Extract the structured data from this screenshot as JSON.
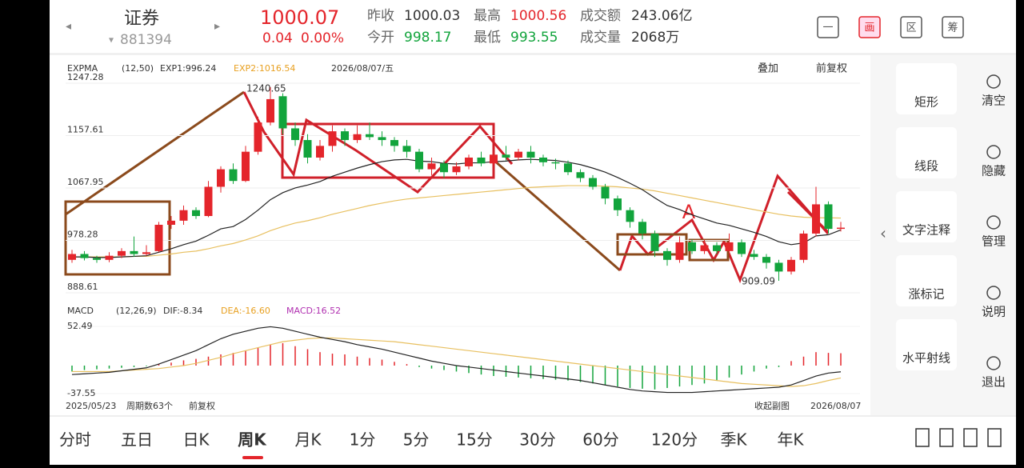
{
  "header": {
    "name": "证券",
    "code": "881394",
    "price": 1000.07,
    "change": 0.04,
    "change_pct": "0.00%",
    "stats": [
      [
        "昨收",
        "1000.03"
      ],
      [
        "最高",
        "1000.56"
      ],
      [
        "成交额",
        "243.06亿"
      ],
      [
        "今开",
        "998.17"
      ],
      [
        "最低",
        "993.55"
      ],
      [
        "成交量",
        "2068万"
      ]
    ],
    "icons": [
      "一",
      "画",
      "区",
      "筹"
    ]
  },
  "chart": {
    "type": "candlestick",
    "indicator": "EXPMA",
    "params": "(12,50)",
    "exp1_label": "EXP1:996.24",
    "exp2_label": "EXP2:1016.54",
    "date": "2026/08/07/五",
    "overlay": "叠加",
    "adjust": "前复权",
    "ylim": [
      888.61,
      1247.28
    ],
    "yticks": [
      888.61,
      978.28,
      1067.95,
      1157.61,
      1247.28
    ],
    "high_note": "1240.65",
    "low_note": "909.09",
    "mark_letter": "A",
    "candles": [
      [
        945,
        955,
        962,
        940
      ],
      [
        955,
        948,
        960,
        944
      ],
      [
        948,
        945,
        952,
        940
      ],
      [
        945,
        952,
        958,
        941
      ],
      [
        952,
        960,
        965,
        948
      ],
      [
        960,
        955,
        985,
        950
      ],
      [
        955,
        958,
        970,
        952
      ],
      [
        960,
        1005,
        1010,
        958
      ],
      [
        1005,
        1012,
        1020,
        998
      ],
      [
        1012,
        1030,
        1038,
        1005
      ],
      [
        1030,
        1020,
        1035,
        1015
      ],
      [
        1020,
        1070,
        1080,
        1018
      ],
      [
        1070,
        1100,
        1105,
        1060
      ],
      [
        1100,
        1080,
        1110,
        1075
      ],
      [
        1080,
        1130,
        1140,
        1078
      ],
      [
        1130,
        1180,
        1190,
        1125
      ],
      [
        1180,
        1220,
        1240.65,
        1175
      ],
      [
        1225,
        1170,
        1230,
        1160
      ],
      [
        1170,
        1150,
        1180,
        1140
      ],
      [
        1150,
        1120,
        1160,
        1110
      ],
      [
        1120,
        1140,
        1150,
        1115
      ],
      [
        1140,
        1165,
        1175,
        1130
      ],
      [
        1165,
        1150,
        1170,
        1140
      ],
      [
        1150,
        1160,
        1175,
        1145
      ],
      [
        1160,
        1155,
        1180,
        1150
      ],
      [
        1155,
        1150,
        1165,
        1140
      ],
      [
        1150,
        1140,
        1155,
        1130
      ],
      [
        1140,
        1130,
        1150,
        1120
      ],
      [
        1130,
        1100,
        1135,
        1095
      ],
      [
        1100,
        1110,
        1120,
        1090
      ],
      [
        1110,
        1095,
        1115,
        1085
      ],
      [
        1095,
        1105,
        1112,
        1090
      ],
      [
        1105,
        1120,
        1125,
        1100
      ],
      [
        1120,
        1110,
        1130,
        1105
      ],
      [
        1110,
        1125,
        1130,
        1108
      ],
      [
        1125,
        1120,
        1140,
        1115
      ],
      [
        1120,
        1130,
        1135,
        1115
      ],
      [
        1130,
        1120,
        1140,
        1110
      ],
      [
        1120,
        1112,
        1125,
        1105
      ],
      [
        1112,
        1110,
        1118,
        1100
      ],
      [
        1110,
        1095,
        1115,
        1090
      ],
      [
        1095,
        1085,
        1100,
        1078
      ],
      [
        1085,
        1070,
        1090,
        1065
      ],
      [
        1070,
        1050,
        1075,
        1040
      ],
      [
        1050,
        1030,
        1055,
        1020
      ],
      [
        1030,
        1010,
        1035,
        1000
      ],
      [
        1010,
        990,
        1015,
        980
      ],
      [
        990,
        960,
        995,
        950
      ],
      [
        960,
        945,
        965,
        935
      ],
      [
        945,
        975,
        985,
        940
      ],
      [
        975,
        960,
        980,
        955
      ],
      [
        960,
        970,
        980,
        955
      ],
      [
        970,
        960,
        975,
        955
      ],
      [
        960,
        975,
        990,
        955
      ],
      [
        975,
        955,
        980,
        950
      ],
      [
        955,
        950,
        962,
        945
      ],
      [
        950,
        940,
        955,
        930
      ],
      [
        940,
        925,
        945,
        909.09
      ],
      [
        925,
        945,
        950,
        920
      ],
      [
        945,
        990,
        995,
        940
      ],
      [
        990,
        1040,
        1070,
        985
      ],
      [
        1040,
        998,
        1045,
        990
      ],
      [
        998,
        1000.07,
        1010,
        993.55
      ]
    ],
    "exp1": [
      950,
      950,
      949,
      949,
      950,
      951,
      952,
      958,
      964,
      971,
      977,
      987,
      998,
      1002,
      1014,
      1030,
      1048,
      1060,
      1068,
      1073,
      1079,
      1088,
      1095,
      1102,
      1108,
      1113,
      1116,
      1117,
      1114,
      1113,
      1110,
      1109,
      1111,
      1111,
      1113,
      1114,
      1116,
      1117,
      1116,
      1115,
      1112,
      1108,
      1102,
      1095,
      1086,
      1076,
      1065,
      1051,
      1038,
      1031,
      1022,
      1015,
      1008,
      1004,
      998,
      992,
      985,
      976,
      971,
      974,
      986,
      988,
      996.24
    ],
    "exp2": [
      950,
      950,
      950,
      950,
      950,
      951,
      951,
      953,
      955,
      958,
      960,
      964,
      969,
      973,
      979,
      986,
      995,
      1002,
      1008,
      1012,
      1017,
      1023,
      1028,
      1033,
      1038,
      1042,
      1046,
      1049,
      1051,
      1053,
      1055,
      1057,
      1059,
      1061,
      1063,
      1065,
      1067,
      1069,
      1070,
      1071,
      1072,
      1072,
      1072,
      1071,
      1070,
      1068,
      1066,
      1063,
      1059,
      1055,
      1051,
      1047,
      1043,
      1039,
      1035,
      1031,
      1027,
      1023,
      1020,
      1018,
      1017,
      1017,
      1016.54
    ],
    "exp1_color": "#222222",
    "exp2_color": "#e8c060",
    "up_color": "#e4252b",
    "down_color": "#12a43c"
  },
  "macd": {
    "indicator": "MACD",
    "params": "(12,26,9)",
    "dif_label": "DIF:-8.34",
    "dea_label": "DEA:-16.60",
    "macd_label": "MACD:16.52",
    "ylim": [
      -37.55,
      52.49
    ],
    "yticks": [
      -37.55,
      52.49
    ],
    "hist": [
      -8,
      -6,
      -5,
      -4,
      -3,
      -2,
      -1,
      2,
      4,
      7,
      9,
      12,
      15,
      17,
      20,
      24,
      28,
      30,
      26,
      22,
      18,
      16,
      15,
      12,
      10,
      8,
      5,
      2,
      -2,
      -4,
      -6,
      -8,
      -10,
      -12,
      -14,
      -15,
      -16,
      -17,
      -18,
      -19,
      -20,
      -22,
      -24,
      -26,
      -28,
      -30,
      -31,
      -32,
      -30,
      -28,
      -26,
      -24,
      -20,
      -16,
      -12,
      -8,
      -4,
      -2,
      6,
      12,
      18,
      17,
      16.52
    ],
    "dif": [
      -12,
      -11,
      -10,
      -9,
      -7,
      -5,
      -3,
      2,
      8,
      14,
      20,
      28,
      36,
      42,
      46,
      50,
      52,
      50,
      46,
      42,
      38,
      35,
      32,
      28,
      25,
      22,
      18,
      14,
      10,
      6,
      3,
      0,
      -2,
      -4,
      -6,
      -8,
      -10,
      -12,
      -14,
      -16,
      -18,
      -20,
      -23,
      -26,
      -29,
      -32,
      -34,
      -35,
      -36,
      -36,
      -36,
      -35,
      -34,
      -33,
      -32,
      -31,
      -30,
      -29,
      -26,
      -20,
      -14,
      -10,
      -8.34
    ],
    "dea": [
      -8,
      -8,
      -8,
      -8,
      -7,
      -6,
      -5,
      -4,
      -2,
      0,
      3,
      7,
      11,
      16,
      20,
      24,
      28,
      32,
      34,
      36,
      37,
      37,
      36,
      35,
      34,
      33,
      32,
      30,
      28,
      26,
      24,
      22,
      20,
      18,
      16,
      14,
      12,
      10,
      8,
      6,
      4,
      2,
      0,
      -2,
      -4,
      -6,
      -8,
      -10,
      -12,
      -14,
      -16,
      -18,
      -20,
      -22,
      -24,
      -25,
      -26,
      -27,
      -28,
      -27,
      -24,
      -20,
      -16.6
    ],
    "dif_color": "#222222",
    "dea_color": "#e8c060"
  },
  "footer": {
    "start": "2025/05/23",
    "count": "周期数63个",
    "adjust": "前复权",
    "collapse": "收起副图",
    "end": "2026/08/07"
  },
  "tools": [
    "矩形",
    "线段",
    "文字注释",
    "涨标记",
    "水平射线"
  ],
  "actions": [
    "清空",
    "隐藏",
    "管理",
    "说明",
    "退出"
  ],
  "tabs": [
    "分时",
    "五日",
    "日K",
    "周K",
    "月K",
    "1分",
    "5分",
    "15分",
    "30分",
    "60分",
    "120分",
    "季K",
    "年K"
  ],
  "active_tab": 3
}
